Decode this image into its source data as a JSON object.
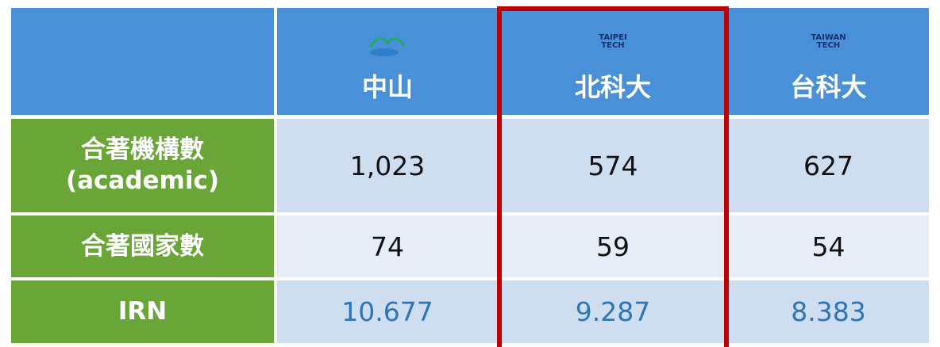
{
  "table": {
    "columns": [
      {
        "name": "中山"
      },
      {
        "name": "北科大",
        "logo_lines": [
          "TAIPEI",
          "TECH"
        ]
      },
      {
        "name": "台科大",
        "logo_lines": [
          "TAIWAN",
          "TECH"
        ]
      }
    ],
    "rows": [
      {
        "label": [
          "合著機構數",
          "(academic)"
        ],
        "cells": [
          "1,023",
          "574",
          "627"
        ]
      },
      {
        "label": [
          "合著國家數"
        ],
        "cells": [
          "74",
          "59",
          "54"
        ]
      },
      {
        "label": [
          "IRN"
        ],
        "cells": [
          "10.677",
          "9.287",
          "8.383"
        ]
      }
    ]
  }
}
